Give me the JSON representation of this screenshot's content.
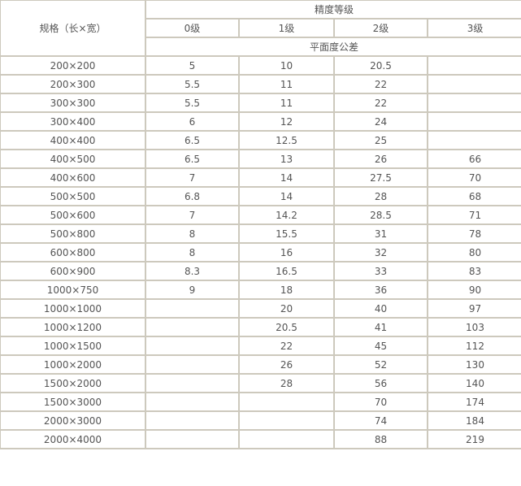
{
  "header": {
    "spec_label": "规格（长×宽）",
    "grade_group_label": "精度等级",
    "grades": [
      "0级",
      "1级",
      "2级",
      "3级"
    ],
    "tolerance_label": "平面度公差"
  },
  "rows": [
    [
      "200×200",
      "5",
      "10",
      "20.5",
      ""
    ],
    [
      "200×300",
      "5.5",
      "11",
      "22",
      ""
    ],
    [
      "300×300",
      "5.5",
      "11",
      "22",
      ""
    ],
    [
      "300×400",
      "6",
      "12",
      "24",
      ""
    ],
    [
      "400×400",
      "6.5",
      "12.5",
      "25",
      ""
    ],
    [
      "400×500",
      "6.5",
      "13",
      "26",
      "66"
    ],
    [
      "400×600",
      "7",
      "14",
      "27.5",
      "70"
    ],
    [
      "500×500",
      "6.8",
      "14",
      "28",
      "68"
    ],
    [
      "500×600",
      "7",
      "14.2",
      "28.5",
      "71"
    ],
    [
      "500×800",
      "8",
      "15.5",
      "31",
      "78"
    ],
    [
      "600×800",
      "8",
      "16",
      "32",
      "80"
    ],
    [
      "600×900",
      "8.3",
      "16.5",
      "33",
      "83"
    ],
    [
      "1000×750",
      "9",
      "18",
      "36",
      "90"
    ],
    [
      "1000×1000",
      "",
      "20",
      "40",
      "97"
    ],
    [
      "1000×1200",
      "",
      "20.5",
      "41",
      "103"
    ],
    [
      "1000×1500",
      "",
      "22",
      "45",
      "112"
    ],
    [
      "1000×2000",
      "",
      "26",
      "52",
      "130"
    ],
    [
      "1500×2000",
      "",
      "28",
      "56",
      "140"
    ],
    [
      "1500×3000",
      "",
      "",
      "70",
      "174"
    ],
    [
      "2000×3000",
      "",
      "",
      "74",
      "184"
    ],
    [
      "2000×4000",
      "",
      "",
      "88",
      "219"
    ]
  ]
}
